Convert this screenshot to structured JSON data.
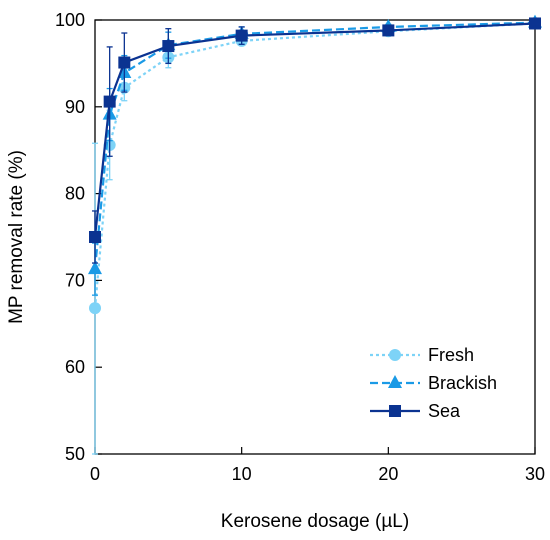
{
  "chart_data": {
    "type": "line",
    "xlabel": "Kerosene dosage (µL)",
    "ylabel": "MP removal rate (%)",
    "xlim": [
      0,
      30
    ],
    "ylim": [
      50,
      100
    ],
    "xticks": [
      "0",
      "10",
      "20",
      "30"
    ],
    "yticks": [
      "50",
      "60",
      "70",
      "80",
      "90",
      "100"
    ],
    "grid": false,
    "legend_position": "bottom-right",
    "series": [
      {
        "name": "Fresh",
        "marker": "circle",
        "line_style": "dotted",
        "color": "#7dd3f7",
        "x": [
          0,
          1,
          2,
          5,
          10,
          20,
          30
        ],
        "y": [
          66.8,
          85.6,
          92.2,
          95.7,
          97.6,
          98.7,
          99.6
        ],
        "error": [
          19.0,
          4.0,
          1.5,
          1.2,
          0.5,
          0.3,
          0.1
        ]
      },
      {
        "name": "Brackish",
        "marker": "triangle",
        "line_style": "dashed",
        "color": "#1a9ae6",
        "x": [
          0,
          1,
          2,
          5,
          10,
          20,
          30
        ],
        "y": [
          71.3,
          89.1,
          93.9,
          97.1,
          98.4,
          99.2,
          99.7
        ],
        "error": [
          3.0,
          3.0,
          2.0,
          1.5,
          0.8,
          0.3,
          0.1
        ]
      },
      {
        "name": "Sea",
        "marker": "square",
        "line_style": "solid",
        "color": "#0b3391",
        "x": [
          0,
          1,
          2,
          5,
          10,
          20,
          30
        ],
        "y": [
          75.0,
          90.6,
          95.1,
          97.0,
          98.2,
          98.8,
          99.6
        ],
        "error": [
          3.0,
          6.3,
          3.4,
          2.0,
          1.0,
          0.5,
          0.1
        ]
      }
    ]
  }
}
